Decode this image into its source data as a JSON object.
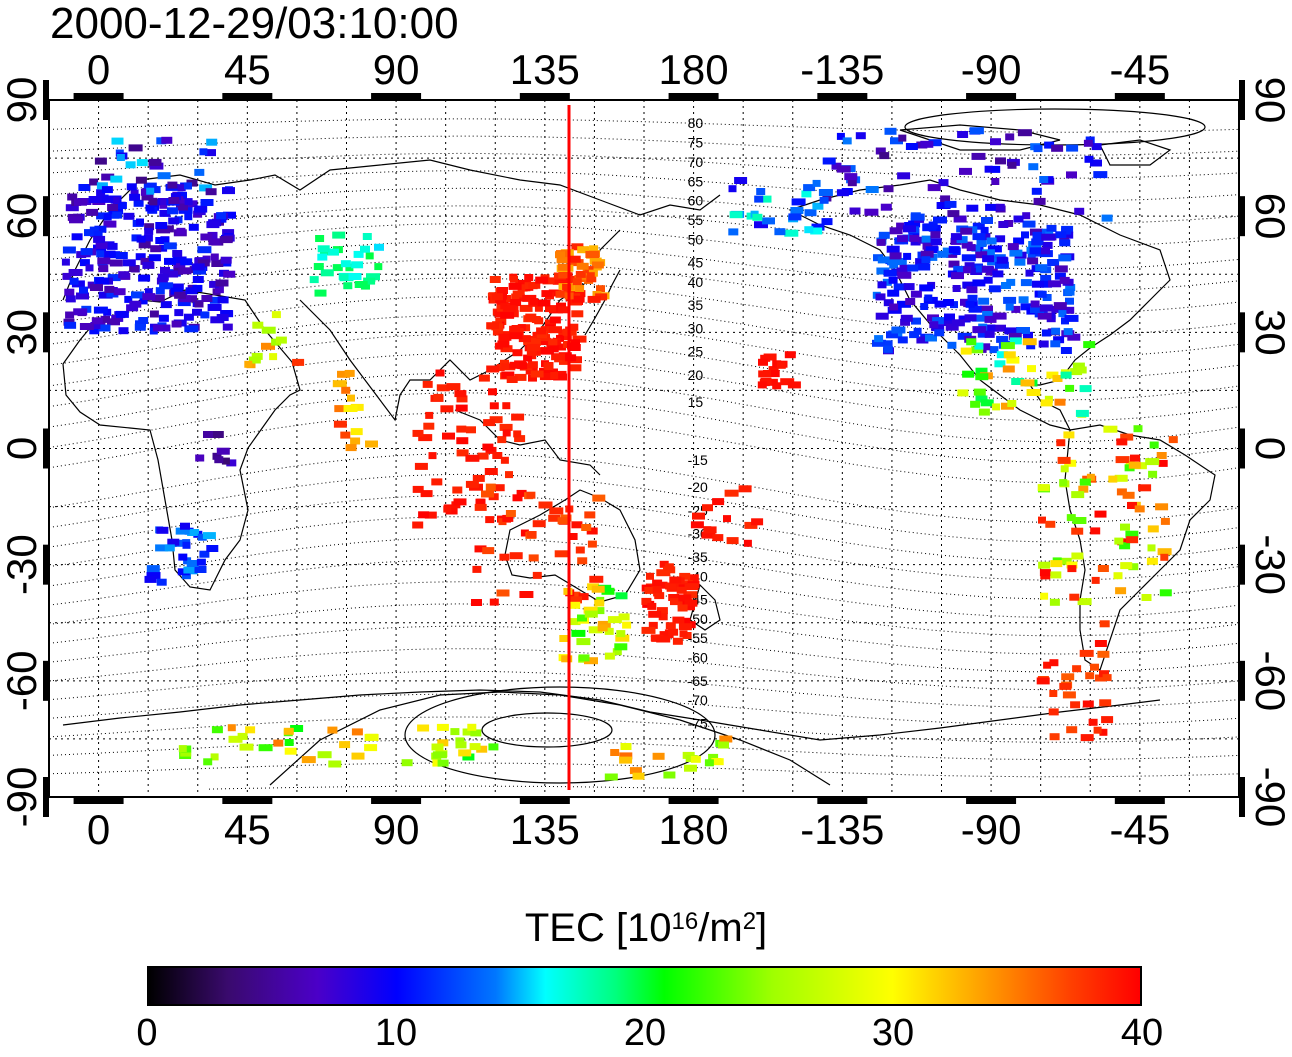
{
  "timestamp": "2000-12-29/03:10:00",
  "map": {
    "projection": "equirectangular",
    "center_longitude": 135,
    "longitude_ticks": [
      "0",
      "45",
      "90",
      "135",
      "180",
      "-135",
      "-90",
      "-45"
    ],
    "longitude_tick_values": [
      0,
      45,
      90,
      135,
      180,
      225,
      270,
      315
    ],
    "latitude_ticks": [
      "90",
      "60",
      "30",
      "0",
      "-30",
      "-60",
      "-90"
    ],
    "latitude_tick_values": [
      90,
      60,
      30,
      0,
      -30,
      -60,
      -90
    ],
    "meridian_marker_longitude": 135,
    "meridian_marker_color": "#ff0000",
    "magnetic_latitude_labels": [
      {
        "text": "80",
        "lon": 180,
        "lat": 84
      },
      {
        "text": "75",
        "lon": 180,
        "lat": 79
      },
      {
        "text": "70",
        "lon": 180,
        "lat": 74
      },
      {
        "text": "65",
        "lon": 180,
        "lat": 69
      },
      {
        "text": "60",
        "lon": 180,
        "lat": 64
      },
      {
        "text": "55",
        "lon": 180,
        "lat": 59
      },
      {
        "text": "50",
        "lon": 180,
        "lat": 54
      },
      {
        "text": "45",
        "lon": 180,
        "lat": 48
      },
      {
        "text": "40",
        "lon": 180,
        "lat": 43
      },
      {
        "text": "35",
        "lon": 180,
        "lat": 37
      },
      {
        "text": "30",
        "lon": 180,
        "lat": 31
      },
      {
        "text": "25",
        "lon": 180,
        "lat": 25
      },
      {
        "text": "20",
        "lon": 180,
        "lat": 19
      },
      {
        "text": "15",
        "lon": 180,
        "lat": 12
      },
      {
        "text": "-15",
        "lon": 180,
        "lat": -3
      },
      {
        "text": "-20",
        "lon": 180,
        "lat": -10
      },
      {
        "text": "-25",
        "lon": 180,
        "lat": -16
      },
      {
        "text": "-30",
        "lon": 180,
        "lat": -22
      },
      {
        "text": "-35",
        "lon": 180,
        "lat": -28
      },
      {
        "text": "-40",
        "lon": 180,
        "lat": -33
      },
      {
        "text": "-45",
        "lon": 180,
        "lat": -39
      },
      {
        "text": "-50",
        "lon": 180,
        "lat": -44
      },
      {
        "text": "-55",
        "lon": 180,
        "lat": -49
      },
      {
        "text": "-60",
        "lon": 180,
        "lat": -54
      },
      {
        "text": "-65",
        "lon": 180,
        "lat": -60
      },
      {
        "text": "-70",
        "lon": 180,
        "lat": -65
      },
      {
        "text": "-75",
        "lon": 180,
        "lat": -71
      }
    ],
    "tec_clusters": [
      {
        "region": "europe",
        "lon": [
          -10,
          40
        ],
        "lat": [
          30,
          68
        ],
        "tec": [
          5,
          12
        ],
        "count": 260
      },
      {
        "region": "europe-north",
        "lon": [
          -5,
          35
        ],
        "lat": [
          62,
          80
        ],
        "tec": [
          4,
          16
        ],
        "count": 40
      },
      {
        "region": "east-asia",
        "lon": [
          118,
          145
        ],
        "lat": [
          18,
          45
        ],
        "tec": [
          38,
          40
        ],
        "count": 170
      },
      {
        "region": "japan-north",
        "lon": [
          138,
          152
        ],
        "lat": [
          38,
          52
        ],
        "tec": [
          33,
          39
        ],
        "count": 45
      },
      {
        "region": "north-america",
        "lon": [
          -125,
          -65
        ],
        "lat": [
          25,
          58
        ],
        "tec": [
          6,
          14
        ],
        "count": 280
      },
      {
        "region": "canada-north",
        "lon": [
          -140,
          -55
        ],
        "lat": [
          58,
          82
        ],
        "tec": [
          4,
          14
        ],
        "count": 80
      },
      {
        "region": "alaska",
        "lon": [
          -170,
          -140
        ],
        "lat": [
          55,
          72
        ],
        "tec": [
          8,
          18
        ],
        "count": 30
      },
      {
        "region": "central-america",
        "lon": [
          -100,
          -60
        ],
        "lat": [
          8,
          28
        ],
        "tec": [
          16,
          36
        ],
        "count": 45
      },
      {
        "region": "hawaii",
        "lon": [
          -160,
          -150
        ],
        "lat": [
          15,
          25
        ],
        "tec": [
          39,
          40
        ],
        "count": 18
      },
      {
        "region": "south-america",
        "lon": [
          -75,
          -35
        ],
        "lat": [
          -40,
          5
        ],
        "tec": [
          22,
          40
        ],
        "count": 80
      },
      {
        "region": "south-america-south",
        "lon": [
          -75,
          -55
        ],
        "lat": [
          -75,
          -45
        ],
        "tec": [
          36,
          40
        ],
        "count": 30
      },
      {
        "region": "southeast-asia",
        "lon": [
          95,
          128
        ],
        "lat": [
          -20,
          20
        ],
        "tec": [
          38,
          40
        ],
        "count": 60
      },
      {
        "region": "australia",
        "lon": [
          113,
          152
        ],
        "lat": [
          -40,
          -10
        ],
        "tec": [
          36,
          40
        ],
        "count": 50
      },
      {
        "region": "australia-se",
        "lon": [
          140,
          160
        ],
        "lat": [
          -55,
          -35
        ],
        "tec": [
          20,
          34
        ],
        "count": 35
      },
      {
        "region": "new-zealand",
        "lon": [
          165,
          180
        ],
        "lat": [
          -50,
          -30
        ],
        "tec": [
          38,
          40
        ],
        "count": 60
      },
      {
        "region": "pacific-south",
        "lon": [
          180,
          200
        ],
        "lat": [
          -25,
          -10
        ],
        "tec": [
          38,
          40
        ],
        "count": 15
      },
      {
        "region": "south-africa",
        "lon": [
          15,
          35
        ],
        "lat": [
          -35,
          -20
        ],
        "tec": [
          9,
          15
        ],
        "count": 30
      },
      {
        "region": "east-africa",
        "lon": [
          30,
          40
        ],
        "lat": [
          -5,
          5
        ],
        "tec": [
          3,
          8
        ],
        "count": 8
      },
      {
        "region": "central-asia",
        "lon": [
          65,
          85
        ],
        "lat": [
          40,
          55
        ],
        "tec": [
          15,
          20
        ],
        "count": 30
      },
      {
        "region": "india",
        "lon": [
          72,
          82
        ],
        "lat": [
          0,
          20
        ],
        "tec": [
          30,
          40
        ],
        "count": 14
      },
      {
        "region": "middle-east",
        "lon": [
          45,
          60
        ],
        "lat": [
          20,
          35
        ],
        "tec": [
          25,
          38
        ],
        "count": 12
      },
      {
        "region": "antarctica",
        "lon": [
          25,
          120
        ],
        "lat": [
          -82,
          -72
        ],
        "tec": [
          20,
          36
        ],
        "count": 50
      },
      {
        "region": "antarctica-east",
        "lon": [
          150,
          190
        ],
        "lat": [
          -85,
          -75
        ],
        "tec": [
          20,
          36
        ],
        "count": 20
      }
    ]
  },
  "colorbar": {
    "title_prefix": "TEC  [10",
    "title_sup1": "16",
    "title_mid": "/m",
    "title_sup2": "2",
    "title_suffix": "]",
    "min": 0,
    "max": 40,
    "tick_labels": [
      "0",
      "10",
      "20",
      "30",
      "40"
    ],
    "colormap": [
      "#000000",
      "#4b00c8",
      "#0000ff",
      "#00ffff",
      "#00ff00",
      "#ffff00",
      "#ff0000"
    ]
  }
}
